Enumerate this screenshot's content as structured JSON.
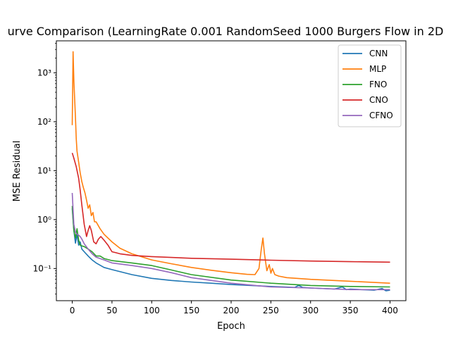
{
  "chart_data": {
    "type": "line",
    "title": "urve Comparison (LearningRate 0.001 RandomSeed 1000 Burgers Flow in 2D",
    "xlabel": "Epoch",
    "ylabel": "MSE Residual",
    "xlim": [
      -20,
      420
    ],
    "ylim": [
      0.022,
      4500
    ],
    "yscale": "log",
    "grid": false,
    "legend_position": "top-right",
    "x_ticks": [
      0,
      50,
      100,
      150,
      200,
      250,
      300,
      350,
      400
    ],
    "y_ticks": [
      {
        "value": 0.1,
        "label": "10⁻¹"
      },
      {
        "value": 1,
        "label": "10⁰"
      },
      {
        "value": 10,
        "label": "10¹"
      },
      {
        "value": 100,
        "label": "10²"
      },
      {
        "value": 1000,
        "label": "10³"
      }
    ],
    "series": [
      {
        "name": "CNN",
        "color": "#1f77b4",
        "x": [
          0,
          2,
          4,
          6,
          8,
          10,
          12,
          15,
          20,
          25,
          30,
          40,
          50,
          75,
          100,
          125,
          150,
          175,
          200,
          250,
          280,
          285,
          290,
          300,
          330,
          340,
          345,
          350,
          380,
          390,
          395,
          400
        ],
        "y": [
          1.7,
          0.6,
          0.33,
          0.5,
          0.3,
          0.35,
          0.25,
          0.22,
          0.18,
          0.15,
          0.13,
          0.105,
          0.095,
          0.075,
          0.063,
          0.057,
          0.053,
          0.05,
          0.047,
          0.043,
          0.041,
          0.045,
          0.041,
          0.04,
          0.038,
          0.042,
          0.037,
          0.038,
          0.036,
          0.039,
          0.035,
          0.036
        ]
      },
      {
        "name": "MLP",
        "color": "#ff7f0e",
        "x": [
          0,
          1,
          2,
          3,
          4,
          5,
          6,
          8,
          10,
          12,
          14,
          16,
          18,
          20,
          22,
          24,
          26,
          28,
          30,
          35,
          40,
          50,
          60,
          75,
          100,
          125,
          150,
          175,
          200,
          220,
          230,
          235,
          238,
          240,
          242,
          245,
          248,
          250,
          252,
          255,
          260,
          270,
          300,
          350,
          400
        ],
        "y": [
          85,
          2700,
          700,
          300,
          120,
          45,
          25,
          15,
          9,
          6,
          4.5,
          3.5,
          2.5,
          1.7,
          2.0,
          1.2,
          1.4,
          0.9,
          0.9,
          0.65,
          0.5,
          0.35,
          0.26,
          0.2,
          0.15,
          0.125,
          0.105,
          0.092,
          0.082,
          0.076,
          0.075,
          0.1,
          0.25,
          0.42,
          0.2,
          0.09,
          0.12,
          0.08,
          0.1,
          0.075,
          0.07,
          0.065,
          0.06,
          0.055,
          0.05
        ]
      },
      {
        "name": "FNO",
        "color": "#2ca02c",
        "x": [
          0,
          2,
          4,
          6,
          8,
          10,
          12,
          15,
          20,
          25,
          30,
          35,
          40,
          50,
          75,
          100,
          125,
          150,
          200,
          250,
          300,
          350,
          400
        ],
        "y": [
          1.9,
          0.6,
          0.42,
          0.65,
          0.38,
          0.3,
          0.29,
          0.28,
          0.25,
          0.22,
          0.18,
          0.18,
          0.16,
          0.145,
          0.13,
          0.115,
          0.093,
          0.075,
          0.058,
          0.05,
          0.045,
          0.043,
          0.042
        ]
      },
      {
        "name": "CNO",
        "color": "#d62728",
        "x": [
          0,
          2,
          5,
          8,
          10,
          12,
          15,
          18,
          20,
          22,
          24,
          27,
          30,
          33,
          36,
          40,
          45,
          50,
          55,
          60,
          75,
          100,
          150,
          200,
          250,
          300,
          350,
          400
        ],
        "y": [
          23,
          18,
          12,
          7,
          4,
          2,
          0.8,
          0.45,
          0.6,
          0.75,
          0.6,
          0.35,
          0.32,
          0.4,
          0.45,
          0.38,
          0.3,
          0.22,
          0.21,
          0.2,
          0.185,
          0.175,
          0.162,
          0.155,
          0.148,
          0.142,
          0.138,
          0.135
        ]
      },
      {
        "name": "CFNO",
        "color": "#9467bd",
        "x": [
          0,
          2,
          4,
          6,
          8,
          10,
          12,
          15,
          20,
          25,
          30,
          40,
          50,
          75,
          100,
          125,
          150,
          200,
          250,
          300,
          350,
          400
        ],
        "y": [
          3.5,
          0.8,
          0.55,
          0.5,
          0.48,
          0.45,
          0.4,
          0.32,
          0.25,
          0.2,
          0.17,
          0.15,
          0.13,
          0.115,
          0.1,
          0.082,
          0.065,
          0.05,
          0.042,
          0.04,
          0.037,
          0.037
        ]
      }
    ]
  }
}
